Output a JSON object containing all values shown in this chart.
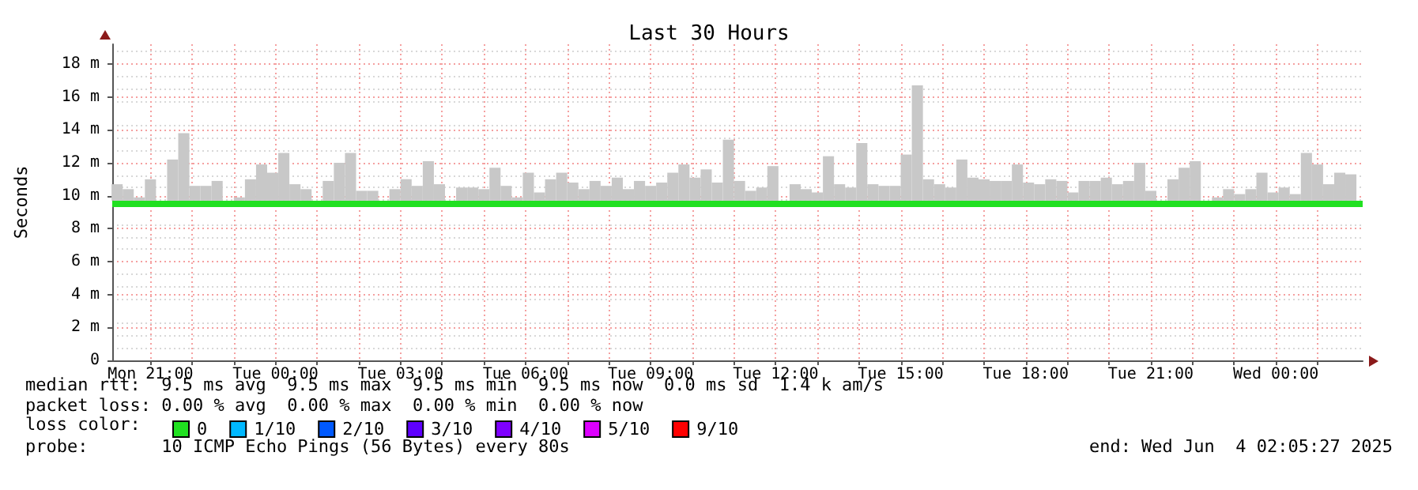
{
  "chart_data": {
    "type": "bar",
    "title": "Last 30 Hours",
    "ylabel": "Seconds",
    "legend_title": "loss color:",
    "legend": "bottom left",
    "grid": true,
    "marker": "none",
    "xlim": [
      "2025-06-02T20:05",
      "2025-06-04T02:05"
    ],
    "ylim": [
      0,
      19.2
    ],
    "xticks": [
      {
        "value": "2025-06-02T21:00",
        "label": "Mon 21:00"
      },
      {
        "value": "2025-06-02T22:00",
        "label": null
      },
      {
        "value": "2025-06-02T23:00",
        "label": null
      },
      {
        "value": "2025-06-03T00:00",
        "label": "Tue 00:00"
      },
      {
        "value": "2025-06-03T01:00",
        "label": null
      },
      {
        "value": "2025-06-03T02:00",
        "label": null
      },
      {
        "value": "2025-06-03T03:00",
        "label": "Tue 03:00"
      },
      {
        "value": "2025-06-03T04:00",
        "label": null
      },
      {
        "value": "2025-06-03T05:00",
        "label": null
      },
      {
        "value": "2025-06-03T06:00",
        "label": "Tue 06:00"
      },
      {
        "value": "2025-06-03T07:00",
        "label": null
      },
      {
        "value": "2025-06-03T08:00",
        "label": null
      },
      {
        "value": "2025-06-03T09:00",
        "label": "Tue 09:00"
      },
      {
        "value": "2025-06-03T10:00",
        "label": null
      },
      {
        "value": "2025-06-03T11:00",
        "label": null
      },
      {
        "value": "2025-06-03T12:00",
        "label": "Tue 12:00"
      },
      {
        "value": "2025-06-03T13:00",
        "label": null
      },
      {
        "value": "2025-06-03T14:00",
        "label": null
      },
      {
        "value": "2025-06-03T15:00",
        "label": "Tue 15:00"
      },
      {
        "value": "2025-06-03T16:00",
        "label": null
      },
      {
        "value": "2025-06-03T17:00",
        "label": null
      },
      {
        "value": "2025-06-03T18:00",
        "label": "Tue 18:00"
      },
      {
        "value": "2025-06-03T19:00",
        "label": null
      },
      {
        "value": "2025-06-03T20:00",
        "label": null
      },
      {
        "value": "2025-06-03T21:00",
        "label": "Tue 21:00"
      },
      {
        "value": "2025-06-03T22:00",
        "label": null
      },
      {
        "value": "2025-06-03T23:00",
        "label": null
      },
      {
        "value": "2025-06-04T00:00",
        "label": "Wed 00:00"
      },
      {
        "value": "2025-06-04T01:00",
        "label": null
      }
    ],
    "yticks": [
      0,
      {
        "value": 2,
        "label": "2 m"
      },
      {
        "value": 4,
        "label": "4 m"
      },
      {
        "value": 6,
        "label": "6 m"
      },
      {
        "value": 8,
        "label": "8 m"
      },
      {
        "value": 10,
        "label": "10 m"
      },
      {
        "value": 12,
        "label": "12 m"
      },
      {
        "value": 14,
        "label": "14 m"
      },
      {
        "value": 16,
        "label": "16 m"
      },
      {
        "value": 18,
        "label": "18 m"
      }
    ],
    "series": [
      {
        "color": "#c8c8c8",
        "x": [
          "2025-06-02T20:12",
          "2025-06-02T20:28",
          "2025-06-02T20:44",
          "2025-06-02T21:00",
          "2025-06-02T21:16",
          "2025-06-02T21:32",
          "2025-06-02T21:48",
          "2025-06-02T22:04",
          "2025-06-02T22:20",
          "2025-06-02T22:36",
          "2025-06-02T22:52",
          "2025-06-02T23:08",
          "2025-06-02T23:24",
          "2025-06-02T23:40",
          "2025-06-02T23:56",
          "2025-06-03T00:12",
          "2025-06-03T00:28",
          "2025-06-03T00:44",
          "2025-06-03T01:00",
          "2025-06-03T01:16",
          "2025-06-03T01:32",
          "2025-06-03T01:48",
          "2025-06-03T02:04",
          "2025-06-03T02:20",
          "2025-06-03T02:36",
          "2025-06-03T02:52",
          "2025-06-03T03:08",
          "2025-06-03T03:24",
          "2025-06-03T03:40",
          "2025-06-03T03:56",
          "2025-06-03T04:12",
          "2025-06-03T04:28",
          "2025-06-03T04:44",
          "2025-06-03T05:00",
          "2025-06-03T05:16",
          "2025-06-03T05:32",
          "2025-06-03T05:48",
          "2025-06-03T06:04",
          "2025-06-03T06:20",
          "2025-06-03T06:36",
          "2025-06-03T06:52",
          "2025-06-03T07:08",
          "2025-06-03T07:24",
          "2025-06-03T07:40",
          "2025-06-03T07:56",
          "2025-06-03T08:12",
          "2025-06-03T08:28",
          "2025-06-03T08:44",
          "2025-06-03T09:00",
          "2025-06-03T09:16",
          "2025-06-03T09:32",
          "2025-06-03T09:48",
          "2025-06-03T10:04",
          "2025-06-03T10:20",
          "2025-06-03T10:36",
          "2025-06-03T10:52",
          "2025-06-03T11:08",
          "2025-06-03T11:24",
          "2025-06-03T11:40",
          "2025-06-03T11:56",
          "2025-06-03T12:12",
          "2025-06-03T12:28",
          "2025-06-03T12:44",
          "2025-06-03T13:00",
          "2025-06-03T13:16",
          "2025-06-03T13:32",
          "2025-06-03T13:48",
          "2025-06-03T14:04",
          "2025-06-03T14:20",
          "2025-06-03T14:36",
          "2025-06-03T14:52",
          "2025-06-03T15:08",
          "2025-06-03T15:24",
          "2025-06-03T15:40",
          "2025-06-03T15:56",
          "2025-06-03T16:12",
          "2025-06-03T16:28",
          "2025-06-03T16:44",
          "2025-06-03T17:00",
          "2025-06-03T17:16",
          "2025-06-03T17:32",
          "2025-06-03T17:48",
          "2025-06-03T18:04",
          "2025-06-03T18:20",
          "2025-06-03T18:36",
          "2025-06-03T18:52",
          "2025-06-03T19:08",
          "2025-06-03T19:24",
          "2025-06-03T19:40",
          "2025-06-03T19:56",
          "2025-06-03T20:12",
          "2025-06-03T20:28",
          "2025-06-03T20:44",
          "2025-06-03T21:00",
          "2025-06-03T21:16",
          "2025-06-03T21:32",
          "2025-06-03T21:48",
          "2025-06-03T22:04",
          "2025-06-03T22:20",
          "2025-06-03T22:36",
          "2025-06-03T22:52",
          "2025-06-03T23:08",
          "2025-06-03T23:24",
          "2025-06-03T23:40",
          "2025-06-03T23:56",
          "2025-06-04T00:12",
          "2025-06-04T00:28",
          "2025-06-04T00:44",
          "2025-06-04T01:00",
          "2025-06-04T01:16",
          "2025-06-04T01:32",
          "2025-06-04T01:48"
        ],
        "base": [
          9.7,
          9.7,
          9.7,
          9.7,
          null,
          9.7,
          9.7,
          9.7,
          9.7,
          9.7,
          null,
          9.7,
          9.7,
          9.7,
          9.7,
          9.7,
          9.7,
          9.7,
          null,
          9.7,
          9.7,
          9.7,
          9.7,
          9.7,
          null,
          9.7,
          9.7,
          9.7,
          9.7,
          9.7,
          null,
          9.7,
          9.7,
          9.7,
          9.7,
          9.7,
          9.7,
          9.7,
          9.7,
          9.7,
          9.7,
          9.7,
          9.7,
          9.7,
          9.7,
          9.7,
          9.7,
          9.7,
          9.7,
          9.7,
          9.7,
          9.7,
          9.7,
          9.7,
          9.7,
          9.7,
          9.7,
          9.7,
          9.7,
          9.7,
          null,
          9.7,
          9.7,
          9.7,
          9.7,
          9.7,
          9.7,
          9.7,
          9.7,
          9.7,
          9.7,
          9.7,
          9.7,
          9.7,
          9.7,
          9.7,
          9.7,
          9.7,
          9.7,
          9.7,
          9.7,
          9.7,
          9.7,
          9.7,
          9.7,
          9.7,
          9.7,
          9.7,
          9.7,
          9.7,
          9.7,
          9.7,
          9.7,
          9.7,
          null,
          9.7,
          9.7,
          9.7,
          null,
          9.7,
          9.7,
          9.7,
          9.7,
          9.7,
          9.7,
          9.7,
          9.7,
          9.7,
          9.7,
          9.7,
          9.7,
          9.7
        ],
        "values": [
          1.0,
          0.7,
          0.2,
          1.3,
          null,
          2.5,
          4.1,
          0.9,
          0.9,
          1.2,
          null,
          0.2,
          1.3,
          2.2,
          1.7,
          2.9,
          1.0,
          0.7,
          null,
          1.2,
          2.3,
          2.9,
          0.6,
          0.6,
          null,
          0.7,
          1.3,
          0.9,
          2.4,
          1.0,
          null,
          0.8,
          0.8,
          0.7,
          2.0,
          0.9,
          0.2,
          1.7,
          0.5,
          1.3,
          1.7,
          1.1,
          0.7,
          1.2,
          0.9,
          1.4,
          0.7,
          1.2,
          0.9,
          1.1,
          1.7,
          2.2,
          1.4,
          1.9,
          1.1,
          3.7,
          1.2,
          0.6,
          0.8,
          2.1,
          null,
          1.0,
          0.7,
          0.5,
          2.7,
          1.0,
          0.8,
          3.5,
          1.0,
          0.9,
          0.9,
          2.8,
          7.0,
          1.3,
          1.0,
          0.8,
          2.5,
          1.4,
          1.3,
          1.2,
          1.2,
          2.2,
          1.1,
          1.0,
          1.3,
          1.2,
          0.5,
          1.2,
          1.2,
          1.4,
          1.0,
          1.2,
          2.3,
          0.6,
          null,
          1.3,
          2.0,
          2.4,
          null,
          0.2,
          0.7,
          0.4,
          0.7,
          1.7,
          0.5,
          0.8,
          0.4,
          2.9,
          2.2,
          1.0,
          1.7,
          1.6
        ]
      },
      {
        "type": "line",
        "name": "0",
        "color": "#20e020",
        "x": [
          "2025-06-02T20:05",
          "2025-06-04T02:05"
        ],
        "values": [
          9.5,
          9.5
        ]
      },
      {
        "type": "line",
        "name": "1/10",
        "color": "#00b8ff"
      },
      {
        "type": "line",
        "name": "2/10",
        "color": "#0059ff"
      },
      {
        "type": "line",
        "name": "3/10",
        "color": "#5e00ff"
      },
      {
        "type": "line",
        "name": "4/10",
        "color": "#7e00ff"
      },
      {
        "type": "line",
        "name": "5/10",
        "color": "#dd00ff"
      },
      {
        "type": "line",
        "name": "9/10",
        "color": "#ff0000"
      }
    ],
    "annotations": [
      "median rtt:  9.5 ms avg  9.5 ms max  9.5 ms min  9.5 ms now  0.0 ms sd  1.4 k am/s",
      "packet loss: 0.00 % avg  0.00 % max  0.00 % min  0.00 % now",
      "probe:       10 ICMP Echo Pings (56 Bytes) every 80s",
      "end: Wed Jun  4 02:05:27 2025"
    ]
  }
}
